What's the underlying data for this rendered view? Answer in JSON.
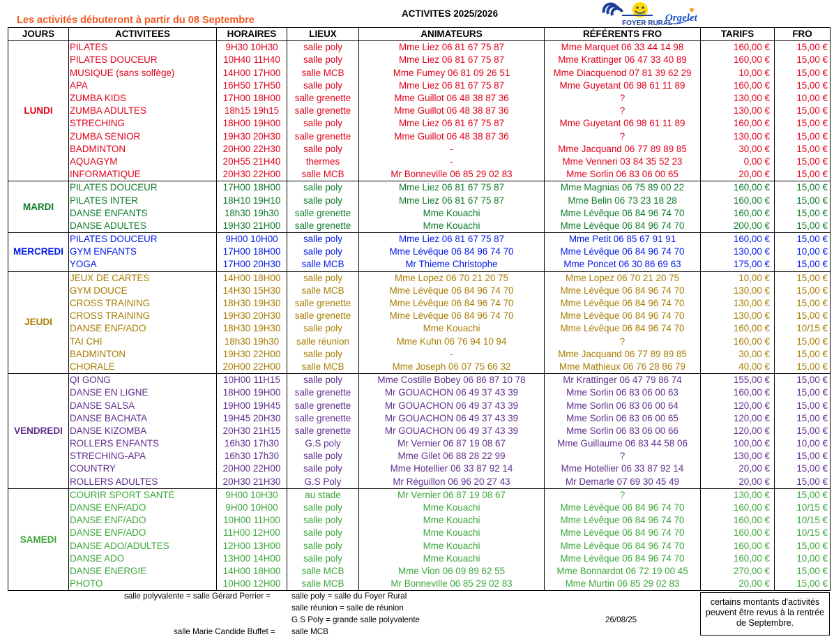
{
  "header": {
    "notice": "Les activités débuteront à partir du 08 Septembre",
    "title": "ACTIVITES 2025/2026",
    "logo_text": "FOYER RURAL",
    "logo_town": "Orgelet"
  },
  "colors": {
    "notice": "#f15a22",
    "LUNDI": "#e0001a",
    "MARDI": "#0f7a2a",
    "MERCREDI": "#0018e8",
    "JEUDI": "#a77c00",
    "VENDREDI": "#5f2e8e",
    "SAMEDI": "#3aa63a"
  },
  "columns": [
    "JOURS",
    "ACTIVITEES",
    "HORAIRES",
    "LIEUX",
    "ANIMATEURS",
    "RÉFÉRENTS FRO",
    "TARIFS",
    "FRO"
  ],
  "days": [
    {
      "day": "LUNDI",
      "rows": [
        [
          "PILATES",
          "9H30 10H30",
          "salle poly",
          "Mme Liez 06 81 67 75 87",
          "Mme Marquet 06 33 44 14 98",
          "160,00 €",
          "15,00 €"
        ],
        [
          "PILATES DOUCEUR",
          "10H40 11H40",
          "salle poly",
          "Mme Liez 06 81 67 75 87",
          "Mme Krattinger 06 47 33 40 89",
          "160,00 €",
          "15,00 €"
        ],
        [
          "MUSIQUE (sans solfège)",
          "14H00 17H00",
          "salle MCB",
          "Mme Fumey 06 81 09 26 51",
          "Mme Diacquenod 07 81 39 62 29",
          "10,00 €",
          "15,00 €"
        ],
        [
          "APA",
          "16H50 17H50",
          "salle poly",
          "Mme Liez 06 81 67 75 87",
          "Mme Guyetant 06 98 61 11 89",
          "160,00 €",
          "15,00 €"
        ],
        [
          "ZUMBA KIDS",
          "17H00 18H00",
          "salle grenette",
          "Mme Guillot 06 48 38 87 36",
          "?",
          "130,00 €",
          "10,00 €"
        ],
        [
          "ZUMBA ADULTES",
          "18h15 19h15",
          "salle grenette",
          "Mme Guillot 06 48 38 87 36",
          "?",
          "130,00 €",
          "15,00 €"
        ],
        [
          "STRECHING",
          "18H00 19H00",
          "salle poly",
          "Mme Liez 06 81 67 75 87",
          "Mme Guyetant 06 98 61 11 89",
          "160,00 €",
          "15,00 €"
        ],
        [
          "ZUMBA SENIOR",
          "19H30 20H30",
          "salle grenette",
          "Mme Guillot 06 48 38 87 36",
          "?",
          "130,00 €",
          "15,00 €"
        ],
        [
          "BADMINTON",
          "20H00 22H30",
          "salle poly",
          "-",
          "Mme Jacquand 06 77 89 89 85",
          "30,00 €",
          "15,00 €"
        ],
        [
          "AQUAGYM",
          "20H55 21H40",
          "thermes",
          "-",
          "Mme Venneri 03 84 35 52 23",
          "0,00 €",
          "15,00 €"
        ],
        [
          "INFORMATIQUE",
          "20H30 22H00",
          "salle MCB",
          "Mr Bonneville 06 85 29 02 83",
          "Mme Sorlin 06 83 06 00 65",
          "20,00 €",
          "15,00 €"
        ]
      ]
    },
    {
      "day": "MARDI",
      "rows": [
        [
          "PILATES DOUCEUR",
          "17H00 18H00",
          "salle poly",
          "Mme Liez 06 81 67 75 87",
          "Mme Magnias 06 75 89 00 22",
          "160,00 €",
          "15,00 €"
        ],
        [
          "PILATES INTER",
          "18H10 19H10",
          "salle poly",
          "Mme Liez 06 81 67 75 87",
          "Mme Belin 06 73 23 18 28",
          "160,00 €",
          "15,00 €"
        ],
        [
          "DANSE ENFANTS",
          "18h30 19h30",
          "salle grenette",
          "Mme Kouachi",
          "Mme Lévêque 06 84 96 74 70",
          "160,00 €",
          "15,00 €"
        ],
        [
          "DANSE ADULTES",
          "19H30 21H00",
          "salle grenette",
          "Mme Kouachi",
          "Mme Lévêque 06 84 96 74 70",
          "200,00 €",
          "15,00 €"
        ]
      ]
    },
    {
      "day": "MERCREDI",
      "rows": [
        [
          "PILATES DOUCEUR",
          "9H00 10H00",
          "salle poly",
          "Mme Liez 06 81 67 75 87",
          "Mme Petit 06 85 67 91 91",
          "160,00 €",
          "15,00 €"
        ],
        [
          "GYM ENFANTS",
          "17H00 18H00",
          "salle poly",
          "Mme Lévêque 06 84 96 74 70",
          "Mme Lévêque 06 84 96 74 70",
          "130,00 €",
          "10,00 €"
        ],
        [
          "YOGA",
          "17H00 20H30",
          "salle MCB",
          "Mr Thieme Christophe",
          "Mme Poncet 06 30 86 69 63",
          "175,00 €",
          "15,00 €"
        ]
      ]
    },
    {
      "day": "JEUDI",
      "rows": [
        [
          "JEUX DE CARTES",
          "14H00 18H00",
          "salle poly",
          "Mme Lopez 06 70 21 20 75",
          "Mme Lopez 06 70 21 20 75",
          "10,00 €",
          "15,00 €"
        ],
        [
          "GYM DOUCE",
          "14H30 15H30",
          "salle MCB",
          "Mme Lévêque 06 84 96 74 70",
          "Mme Lévêque 06 84 96 74 70",
          "130,00 €",
          "15,00 €"
        ],
        [
          "CROSS TRAINING",
          "18H30 19H30",
          "salle grenette",
          "Mme Lévêque 06 84 96 74 70",
          "Mme Lévêque 06 84 96 74 70",
          "130,00 €",
          "15,00 €"
        ],
        [
          "CROSS TRAINING",
          "19H30 20H30",
          "salle grenette",
          "Mme Lévêque 06 84 96 74 70",
          "Mme Lévêque 06 84 96 74 70",
          "130,00 €",
          "15,00 €"
        ],
        [
          "DANSE ENF/ADO",
          "18H30 19H30",
          "salle poly",
          "Mme Kouachi",
          "Mme Lévêque 06 84 96 74 70",
          "160,00 €",
          "10/15 €"
        ],
        [
          "TAI CHI",
          "18h30 19h30",
          "salle réunion",
          "Mme Kuhn 06 76 94 10 94",
          "?",
          "160,00 €",
          "15,00 €"
        ],
        [
          "BADMINTON",
          "19H30 22H00",
          "salle poly",
          "-",
          "Mme Jacquand 06 77 89 89 85",
          "30,00 €",
          "15,00 €"
        ],
        [
          "CHORALE",
          "20H00 22H00",
          "salle MCB",
          "Mme Joseph 06 07 75 66 32",
          "Mme Mathieux 06 76 28 86 79",
          "40,00 €",
          "15,00 €"
        ]
      ]
    },
    {
      "day": "VENDREDI",
      "rows": [
        [
          "QI GONG",
          "10H00 11H15",
          "salle poly",
          "Mme Costille Bobey 06 86 87 10 78",
          "Mr Krattinger 06 47 79 86 74",
          "155,00 €",
          "15,00 €"
        ],
        [
          "DANSE EN LIGNE",
          "18H00 19H00",
          "salle grenette",
          "Mr GOUACHON 06 49 37 43 39",
          "Mme Sorlin 06 83 06 00 63",
          "160,00 €",
          "15,00 €"
        ],
        [
          "DANSE SALSA",
          "19H00 19H45",
          "salle grenette",
          "Mr GOUACHON 06 49 37 43 39",
          "Mme Sorlin 06 83 06 00 64",
          "120,00 €",
          "15,00 €"
        ],
        [
          "DANSE BACHATA",
          "19H45 20H30",
          "salle grenette",
          "Mr GOUACHON 06 49 37 43 39",
          "Mme Sorlin 06 83 06 00 65",
          "120,00 €",
          "15,00 €"
        ],
        [
          "DANSE KIZOMBA",
          "20H30 21H15",
          "salle grenette",
          "Mr GOUACHON 06 49 37 43 39",
          "Mme Sorlin 06 83 06 00 66",
          "120,00 €",
          "15,00 €"
        ],
        [
          "ROLLERS ENFANTS",
          "16h30 17h30",
          "G.S poly",
          "Mr Vernier 06 87 19 08 67",
          "Mme Guillaume 06 83 44 58 06",
          "100,00 €",
          "10,00 €"
        ],
        [
          "STRECHING-APA",
          "16h30 17h30",
          "salle poly",
          "Mme Gilet 06 88 28 22 99",
          "?",
          "130,00 €",
          "15,00 €"
        ],
        [
          "COUNTRY",
          "20H00 22H00",
          "salle poly",
          "Mme Hotellier 06 33 87 92 14",
          "Mme Hotellier 06 33 87 92 14",
          "20,00 €",
          "15,00 €"
        ],
        [
          "ROLLERS ADULTES",
          "20H30 21H30",
          "G.S Poly",
          "Mr Réguillon 06 96 20 27 43",
          "Mr Demarle 07 69 30 45 49",
          "20,00 €",
          "15,00 €"
        ]
      ]
    },
    {
      "day": "SAMEDI",
      "rows": [
        [
          "COURIR SPORT SANTÉ",
          "9H00 10H30",
          "au stade",
          "Mr Vernier 06 87 19 08 67",
          "?",
          "130,00 €",
          "15,00 €"
        ],
        [
          "DANSE ENF/ADO",
          "9H00 10H00",
          "salle poly",
          "Mme Kouachi",
          "Mme Lévêque 06 84 96 74 70",
          "160,00 €",
          "10/15 €"
        ],
        [
          "DANSE ENF/ADO",
          "10H00 11H00",
          "salle poly",
          "Mme Kouachi",
          "Mme Lévêque 06 84 96 74 70",
          "160,00 €",
          "10/15 €"
        ],
        [
          "DANSE ENF/ADO",
          "11H00 12H00",
          "salle poly",
          "Mme Kouachi",
          "Mme Lévêque 06 84 96 74 70",
          "160,00 €",
          "10/15 €"
        ],
        [
          "DANSE ADO/ADULTES",
          "12H00 13H00",
          "salle poly",
          "Mme Kouachi",
          "Mme Lévêque 06 84 96 74 70",
          "160,00 €",
          "15,00 €"
        ],
        [
          "DANSE ADO",
          "13H00 14H00",
          "salle poly",
          "Mme Kouachi",
          "Mme Lévêque 06 84 96 74 70",
          "160,00 €",
          "10,00 €"
        ],
        [
          "DANSE ENERGIE",
          "14H00 18H00",
          "salle MCB",
          "Mme Vion 06 09 89 62 55",
          "Mme Bonnardot 06 72 19 00 45",
          "270,00 €",
          "15,00 €"
        ],
        [
          "PHOTO",
          "10H00 12H00",
          "salle MCB",
          "Mr Bonneville 06 85 29 02 83",
          "Mme Murtin 06 85 29 02 83",
          "20,00 €",
          "15,00 €"
        ]
      ]
    }
  ],
  "footer": {
    "line1_left": "salle polyvalente = salle Gérard Perrier =",
    "line1_right": "salle poly = salle du Foyer Rural",
    "line2": "salle réunion = salle de réunion",
    "line3": "G.S Poly = grande salle polyvalente",
    "date": "26/08/25",
    "line4_left": "salle Marie Candide Buffet =",
    "line4_right": "salle MCB",
    "note": "certains montants d'activités peuvent être revus à la rentrée de Septembre."
  }
}
